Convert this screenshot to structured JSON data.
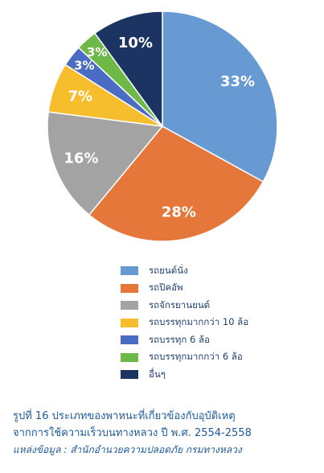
{
  "chart_data": {
    "type": "pie",
    "start": "12 o'clock, clockwise",
    "slices": [
      {
        "label": "รถยนต์นั่ง",
        "value": 33,
        "value_label": "33%",
        "color": "#6799d3"
      },
      {
        "label": "รถปิคอัพ",
        "value": 28,
        "value_label": "28%",
        "color": "#e5773a"
      },
      {
        "label": "รถจักรยานยนต์",
        "value": 16,
        "value_label": "16%",
        "color": "#a3a3a3"
      },
      {
        "label": "รถบรรทุกมากกว่า 10 ล้อ",
        "value": 7,
        "value_label": "7%",
        "color": "#f6be2c"
      },
      {
        "label": "รถบรรทุก 6 ล้อ",
        "value": 3,
        "value_label": "3%",
        "color": "#4a6cc2"
      },
      {
        "label": "รถบรรทุกมากกว่า 6 ล้อ",
        "value": 3,
        "value_label": "3%",
        "color": "#6db847"
      },
      {
        "label": "อื่นๆ",
        "value": 10,
        "value_label": "10%",
        "color": "#1c3461"
      }
    ]
  },
  "caption": {
    "line1": "รูปที่ 16 ประเภทของพาหนะที่เกี่ยวข้องกับอุบัติเหตุ",
    "line2": "จากการใช้ความเร็วบนทางหลวง ปี พ.ศ. 2554-2558",
    "source": "แหล่งข้อมูล : สำนักอำนวยความปลอดภัย กรมทางหลวง"
  }
}
